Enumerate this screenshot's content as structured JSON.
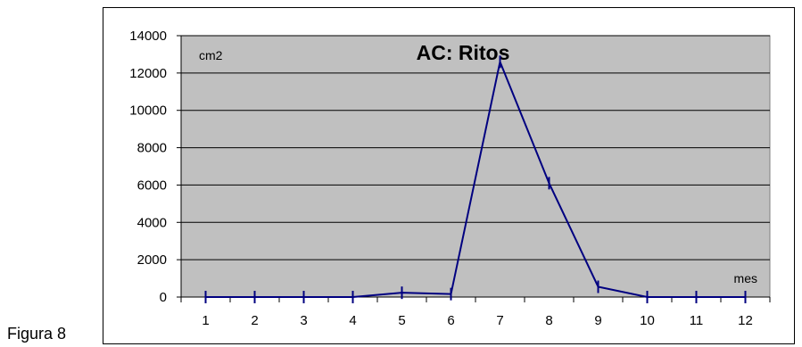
{
  "figure_label": "Figura 8",
  "chart_data": {
    "type": "line",
    "title": "AC: Ritos",
    "ylabel": "cm2",
    "xlabel": "mes",
    "categories": [
      "1",
      "2",
      "3",
      "4",
      "5",
      "6",
      "7",
      "8",
      "9",
      "10",
      "11",
      "12"
    ],
    "series": [
      {
        "values": [
          0,
          0,
          0,
          0,
          230,
          160,
          12600,
          6100,
          550,
          0,
          0,
          0
        ]
      }
    ],
    "ylim": [
      0,
      14000
    ],
    "yticks": [
      0,
      2000,
      4000,
      6000,
      8000,
      10000,
      12000,
      14000
    ],
    "grid": "horizontal",
    "colors": {
      "plot_bg": "#c0c0c0",
      "line": "#000080",
      "grid": "#000000"
    }
  }
}
